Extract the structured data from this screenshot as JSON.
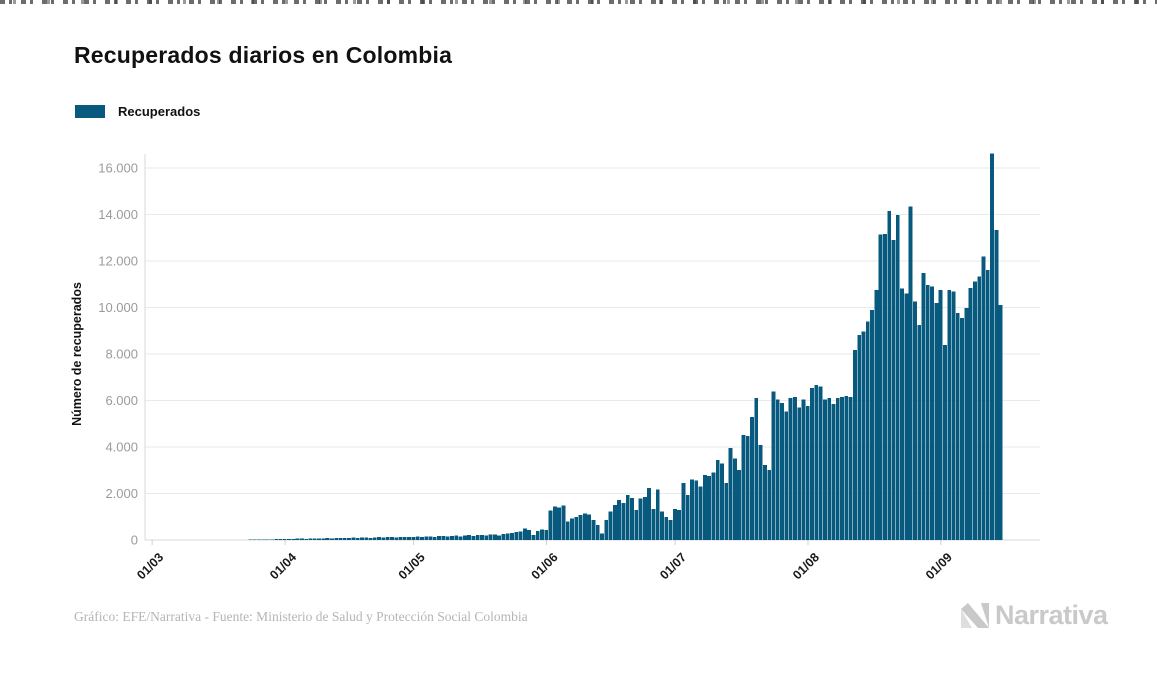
{
  "header": {
    "title": "Recuperados diarios en Colombia"
  },
  "legend": {
    "label": "Recuperados"
  },
  "footer": {
    "credit": "Gráfico: EFE/Narrativa - Fuente: Ministerio de Salud y Protección Social Colombia",
    "logo_text": "Narrativa"
  },
  "chart_data": {
    "type": "bar",
    "title": "Recuperados diarios en Colombia",
    "ylabel": "Número de recuperados",
    "xlabel": "",
    "series_name": "Recuperados",
    "bar_color": "#075a7e",
    "grid_color": "#eaeaea",
    "axis_color": "#d9d9d9",
    "ytick_color": "#9b9b9b",
    "xtick_color": "#1a1a1a",
    "ylim": [
      0,
      16000
    ],
    "grid": "horizontal",
    "legend_position": "top-left",
    "x_start_label": "01/03",
    "x_ticks": [
      {
        "label": "01/03",
        "day": 0
      },
      {
        "label": "01/04",
        "day": 31
      },
      {
        "label": "01/05",
        "day": 61
      },
      {
        "label": "01/06",
        "day": 92
      },
      {
        "label": "01/07",
        "day": 122
      },
      {
        "label": "01/08",
        "day": 153
      },
      {
        "label": "01/09",
        "day": 184
      }
    ],
    "y_ticks": [
      {
        "label": "0",
        "value": 0
      },
      {
        "label": "2.000",
        "value": 2000
      },
      {
        "label": "4.000",
        "value": 4000
      },
      {
        "label": "6.000",
        "value": 6000
      },
      {
        "label": "8.000",
        "value": 8000
      },
      {
        "label": "10.000",
        "value": 10000
      },
      {
        "label": "12.000",
        "value": 12000
      },
      {
        "label": "14.000",
        "value": 14000
      },
      {
        "label": "16.000",
        "value": 16000
      }
    ],
    "values": [
      0,
      0,
      0,
      0,
      0,
      0,
      0,
      0,
      0,
      0,
      0,
      0,
      1,
      1,
      2,
      2,
      3,
      3,
      4,
      5,
      6,
      8,
      10,
      12,
      15,
      18,
      22,
      26,
      30,
      35,
      40,
      45,
      50,
      42,
      55,
      60,
      52,
      65,
      70,
      62,
      75,
      80,
      70,
      85,
      90,
      78,
      95,
      100,
      85,
      105,
      110,
      95,
      115,
      120,
      100,
      125,
      130,
      110,
      135,
      140,
      120,
      130,
      145,
      125,
      150,
      160,
      140,
      165,
      175,
      150,
      180,
      190,
      160,
      195,
      205,
      175,
      210,
      220,
      185,
      230,
      245,
      200,
      260,
      280,
      310,
      340,
      360,
      490,
      430,
      215,
      380,
      450,
      430,
      1260,
      1450,
      1400,
      1480,
      790,
      930,
      1000,
      1075,
      1150,
      1100,
      860,
      645,
      290,
      860,
      1220,
      1505,
      1720,
      1600,
      1935,
      1800,
      1290,
      1790,
      1860,
      2230,
      1330,
      2170,
      1220,
      1000,
      860,
      1330,
      1290,
      2450,
      1935,
      2600,
      2550,
      2300,
      2800,
      2750,
      2900,
      3440,
      3300,
      2450,
      3960,
      3500,
      3010,
      4520,
      4480,
      5300,
      6100,
      4090,
      3230,
      3010,
      6380,
      6050,
      5890,
      5520,
      6100,
      6150,
      5700,
      6050,
      5770,
      6530,
      6670,
      6600,
      6050,
      6100,
      5850,
      6100,
      6150,
      6200,
      6150,
      8170,
      8820,
      8960,
      9390,
      9890,
      10750,
      13150,
      13170,
      14150,
      12900,
      13980,
      10825,
      10600,
      14335,
      10250,
      9250,
      11480,
      10970,
      10900,
      10190,
      10750,
      8390,
      10750,
      10680,
      9760,
      9550,
      9980,
      10840,
      11110,
      11325,
      12200,
      11610,
      16630,
      13330,
      10100
    ]
  }
}
